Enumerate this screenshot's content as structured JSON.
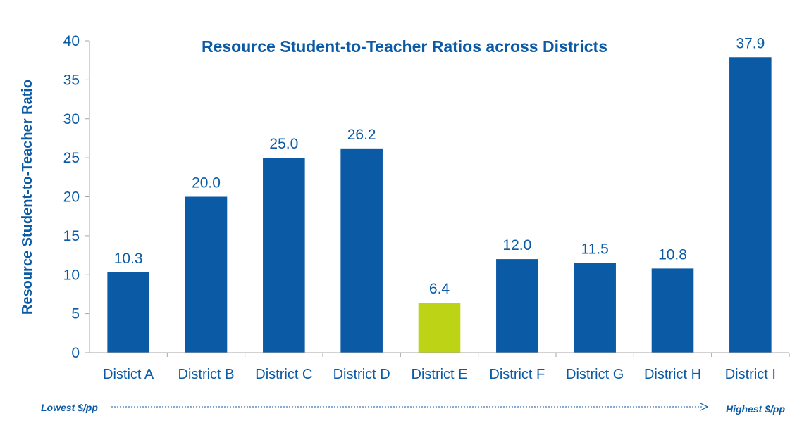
{
  "chart_data": {
    "type": "bar",
    "title": "Resource Student-to-Teacher Ratios across Districts",
    "xlabel": "",
    "ylabel": "Resource Student-to-Teacher Ratio",
    "ylim": [
      0,
      40
    ],
    "yticks": [
      0,
      5,
      10,
      15,
      20,
      25,
      30,
      35,
      40
    ],
    "categories": [
      "Distict A",
      "District B",
      "District C",
      "District D",
      "District E",
      "District F",
      "District G",
      "District H",
      "District I"
    ],
    "values": [
      10.3,
      20.0,
      25.0,
      26.2,
      6.4,
      12.0,
      11.5,
      10.8,
      37.9
    ],
    "data_labels": [
      "10.3",
      "20.0",
      "25.0",
      "26.2",
      "6.4",
      "12.0",
      "11.5",
      "10.8",
      "37.9"
    ],
    "grid": false,
    "colors": {
      "bar": "#0b5aa5",
      "highlight": "#bcd415",
      "highlight_category": "District E",
      "text": "#0b5aa5",
      "axis": "#a6a6a6"
    }
  },
  "footer": {
    "left_label": "Lowest $/pp",
    "right_label": "Highest $/pp"
  }
}
